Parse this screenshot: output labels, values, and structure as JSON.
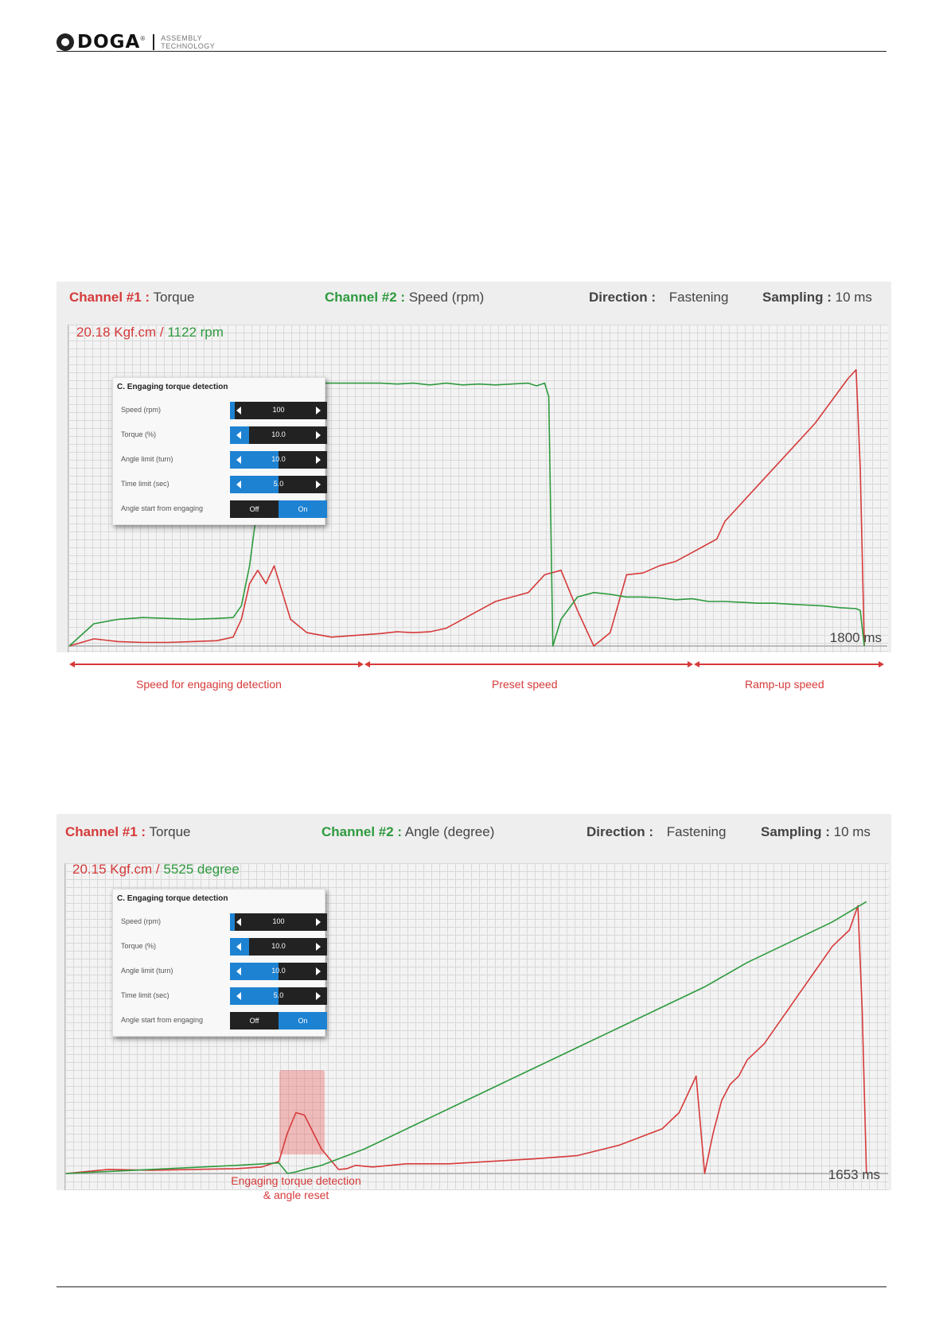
{
  "header": {
    "logo_text": "DOGA",
    "logo_reg": "®",
    "logo_sub_1": "ASSEMBLY",
    "logo_sub_2": "TECHNOLOGY"
  },
  "colors": {
    "torque": "#d63a3a",
    "speed": "#2e9a3e",
    "accent": "#1e82d2"
  },
  "dialog": {
    "title": "C. Engaging torque detection",
    "rows": [
      {
        "label": "Speed (rpm)",
        "value": "100",
        "fill": 0.05
      },
      {
        "label": "Torque (%)",
        "value": "10.0",
        "fill": 0.2
      },
      {
        "label": "Angle limit (turn)",
        "value": "10.0",
        "fill": 0.5
      },
      {
        "label": "Time limit (sec)",
        "value": "5.0",
        "fill": 0.5
      }
    ],
    "toggle_label": "Angle start from engaging",
    "toggle_off": "Off",
    "toggle_on": "On"
  },
  "chart1": {
    "ch1_label": "Channel #1 :",
    "ch1_value": "Torque",
    "ch2_label": "Channel #2 :",
    "ch2_value": "Speed (rpm)",
    "dir_label": "Direction :",
    "dir_value": "Fastening",
    "samp_label": "Sampling :",
    "samp_value": "10 ms",
    "readout_torque": "20.18 Kgf.cm /",
    "readout_second": "1122 rpm",
    "duration": "1800 ms",
    "phases": [
      "Speed for engaging detection",
      "Preset speed",
      "Ramp-up speed"
    ]
  },
  "chart2": {
    "ch1_label": "Channel #1 :",
    "ch1_value": "Torque",
    "ch2_label": "Channel #2 :",
    "ch2_value": "Angle (degree)",
    "dir_label": "Direction :",
    "dir_value": "Fastening",
    "samp_label": "Sampling :",
    "samp_value": "10 ms",
    "readout_torque": "20.15 Kgf.cm /",
    "readout_second": "5525 degree",
    "duration": "1653 ms",
    "annotation_1": "Engaging torque detection",
    "annotation_2": "& angle reset"
  },
  "chart_data": [
    {
      "type": "line",
      "series": [
        {
          "name": "Torque",
          "color": "#d63a3a",
          "x": [
            0,
            30,
            60,
            90,
            120,
            150,
            180,
            200,
            210,
            220,
            230,
            240,
            250,
            260,
            270,
            290,
            320,
            350,
            380,
            400,
            420,
            440,
            460,
            480,
            500,
            520,
            540,
            560,
            580,
            600,
            620,
            640,
            660,
            680,
            700,
            720,
            740,
            760,
            790,
            800,
            810,
            830,
            850,
            870,
            890,
            910,
            930,
            950,
            960,
            965,
            970
          ],
          "y": [
            0,
            0.08,
            0.05,
            0.04,
            0.04,
            0.05,
            0.06,
            0.1,
            0.3,
            0.7,
            0.85,
            0.7,
            0.9,
            0.6,
            0.3,
            0.15,
            0.1,
            0.12,
            0.14,
            0.16,
            0.15,
            0.16,
            0.2,
            0.3,
            0.4,
            0.5,
            0.55,
            0.6,
            0.8,
            0.85,
            0.4,
            0.0,
            0.15,
            0.8,
            0.82,
            0.9,
            0.95,
            1.05,
            1.2,
            1.4,
            1.5,
            1.7,
            1.9,
            2.1,
            2.3,
            2.5,
            2.75,
            3.0,
            3.1,
            2.0,
            0.0
          ]
        },
        {
          "name": "Speed",
          "color": "#2e9a3e",
          "x": [
            0,
            30,
            60,
            90,
            120,
            150,
            180,
            200,
            210,
            220,
            230,
            240,
            260,
            280,
            300,
            320,
            350,
            380,
            400,
            420,
            440,
            460,
            480,
            500,
            520,
            540,
            560,
            570,
            580,
            585,
            590,
            600,
            620,
            640,
            660,
            680,
            700,
            720,
            740,
            760,
            780,
            800,
            820,
            840,
            860,
            880,
            900,
            920,
            940,
            960,
            965,
            970
          ],
          "y": [
            0,
            0.25,
            0.3,
            0.32,
            0.31,
            0.3,
            0.31,
            0.32,
            0.45,
            0.9,
            1.6,
            2.2,
            3.0,
            3.0,
            2.95,
            2.95,
            2.95,
            2.95,
            2.94,
            2.95,
            2.93,
            2.95,
            2.93,
            2.94,
            2.93,
            2.94,
            2.95,
            2.92,
            2.95,
            2.8,
            0.0,
            0.3,
            0.55,
            0.6,
            0.58,
            0.55,
            0.55,
            0.54,
            0.52,
            0.53,
            0.5,
            0.5,
            0.49,
            0.48,
            0.48,
            0.47,
            0.46,
            0.45,
            0.43,
            0.42,
            0.4,
            0.0
          ]
        }
      ]
    },
    {
      "type": "line",
      "series": [
        {
          "name": "Torque",
          "color": "#d63a3a",
          "x": [
            0,
            50,
            100,
            150,
            200,
            230,
            250,
            260,
            270,
            280,
            300,
            320,
            330,
            340,
            360,
            380,
            400,
            450,
            500,
            550,
            600,
            650,
            700,
            720,
            740,
            750,
            760,
            770,
            780,
            790,
            800,
            820,
            840,
            860,
            880,
            900,
            920,
            930,
            935,
            940
          ],
          "y": [
            0,
            0.05,
            0.04,
            0.05,
            0.06,
            0.08,
            0.15,
            0.5,
            0.75,
            0.72,
            0.3,
            0.05,
            0.06,
            0.1,
            0.08,
            0.1,
            0.12,
            0.12,
            0.15,
            0.18,
            0.22,
            0.35,
            0.55,
            0.75,
            1.2,
            0.0,
            0.5,
            0.9,
            1.1,
            1.2,
            1.4,
            1.6,
            1.9,
            2.2,
            2.5,
            2.8,
            3.0,
            3.3,
            2.0,
            0.0
          ]
        },
        {
          "name": "Angle",
          "color": "#2e9a3e",
          "x": [
            0,
            100,
            200,
            250,
            260,
            270,
            280,
            300,
            350,
            400,
            450,
            500,
            550,
            600,
            650,
            700,
            750,
            800,
            850,
            900,
            940
          ],
          "y": [
            0,
            0.05,
            0.1,
            0.13,
            0.0,
            0.02,
            0.05,
            0.1,
            0.3,
            0.55,
            0.8,
            1.05,
            1.3,
            1.55,
            1.8,
            2.05,
            2.3,
            2.6,
            2.85,
            3.1,
            3.35
          ]
        }
      ]
    }
  ]
}
